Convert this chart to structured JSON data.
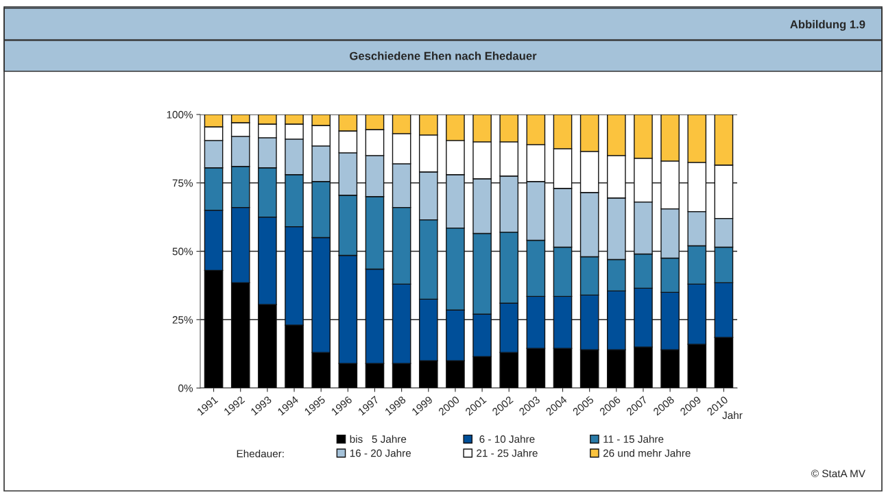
{
  "chart_data": {
    "type": "bar",
    "stacked": true,
    "title": "Geschiedene Ehen nach Ehedauer",
    "xlabel": "Jahr",
    "legend_title": "Ehedauer:",
    "annotations": [
      "Abbildung 1.9",
      "© StatA MV"
    ],
    "categories": [
      "1991",
      "1992",
      "1993",
      "1994",
      "1995",
      "1996",
      "1997",
      "1998",
      "1999",
      "2000",
      "2001",
      "2002",
      "2003",
      "2004",
      "2005",
      "2006",
      "2007",
      "2008",
      "2009",
      "2010"
    ],
    "series": [
      {
        "name": "bis   5 Jahre",
        "color": "#000000",
        "values": [
          43,
          38.5,
          30.5,
          23,
          13,
          9,
          9,
          9,
          10,
          10,
          11.5,
          13,
          14.5,
          14.5,
          14,
          14,
          15,
          14,
          16,
          18.5
        ]
      },
      {
        "name": " 6 - 10 Jahre",
        "color": "#004f99",
        "values": [
          22,
          27.5,
          32,
          36,
          42,
          39.5,
          34.5,
          29,
          22.5,
          18.5,
          15.5,
          18,
          19,
          19,
          20,
          21.5,
          21.5,
          21,
          22,
          20
        ]
      },
      {
        "name": "11 - 15 Jahre",
        "color": "#2a7ba8",
        "values": [
          15.5,
          15,
          18,
          19,
          20.5,
          22,
          26.5,
          28,
          29,
          30,
          29.5,
          26,
          20.5,
          18,
          14,
          11.5,
          12.5,
          12.5,
          14,
          13
        ]
      },
      {
        "name": "16 - 20 Jahre",
        "color": "#a5c2d9",
        "values": [
          10,
          11,
          11,
          13,
          13,
          15.5,
          15,
          16,
          17.5,
          19.5,
          20,
          20.5,
          21.5,
          21.5,
          23.5,
          22.5,
          19,
          18,
          12.5,
          10.5
        ]
      },
      {
        "name": "21 - 25 Jahre",
        "color": "#ffffff",
        "values": [
          5,
          5,
          5,
          5.5,
          7.5,
          8,
          9.5,
          11,
          13.5,
          12.5,
          13.5,
          12.5,
          13.5,
          14.5,
          15,
          15.5,
          16,
          17.5,
          18,
          19.5
        ]
      },
      {
        "name": "26 und mehr Jahre",
        "color": "#fbc33e",
        "values": [
          4.5,
          3,
          3.5,
          3.5,
          4,
          6,
          5.5,
          7,
          7.5,
          9.5,
          10,
          10,
          11,
          12.5,
          13.5,
          15,
          16,
          17,
          17.5,
          18.5
        ]
      }
    ],
    "ylim": [
      0,
      100
    ],
    "yticks": [
      {
        "value": 0,
        "label": "0%"
      },
      {
        "value": 25,
        "label": "25%"
      },
      {
        "value": 50,
        "label": "50%"
      },
      {
        "value": 75,
        "label": "75%"
      },
      {
        "value": 100,
        "label": "100%"
      }
    ],
    "grid": "y",
    "legend": "bottom"
  }
}
